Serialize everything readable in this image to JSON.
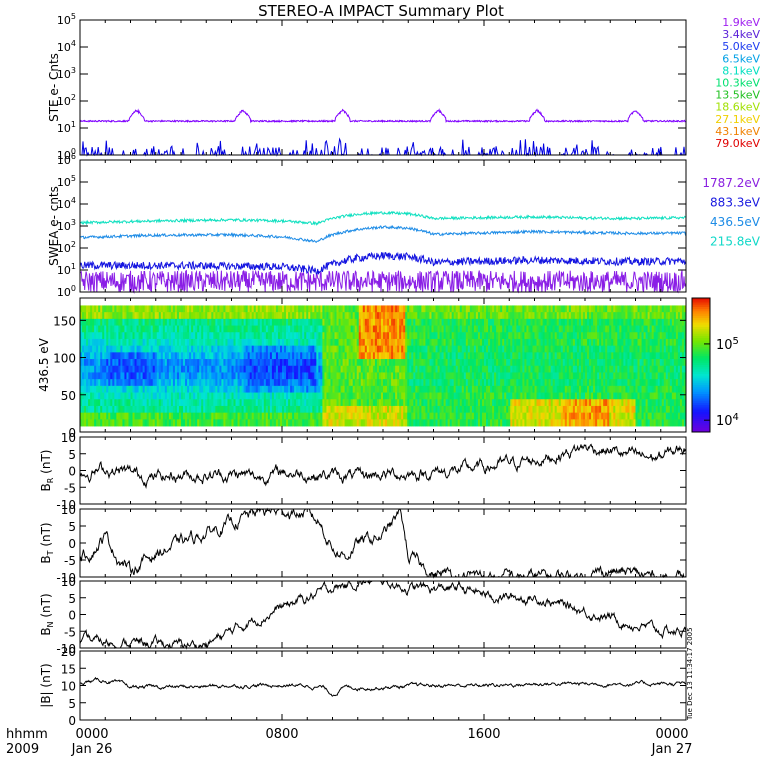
{
  "chart_data": {
    "type": "line",
    "title": "STEREO-A IMPACT Summary Plot",
    "x_axis": {
      "label_line1": "hhmm",
      "label_line2": "2009",
      "range_hours": [
        0,
        24
      ],
      "major_ticks": [
        {
          "hour": 0,
          "label": "0000",
          "sublabel": "Jan 26"
        },
        {
          "hour": 8,
          "label": "0800",
          "sublabel": ""
        },
        {
          "hour": 16,
          "label": "1600",
          "sublabel": ""
        },
        {
          "hour": 24,
          "label": "0000",
          "sublabel": "Jan 27"
        }
      ]
    },
    "panels": [
      {
        "id": "ste",
        "ylabel": "STE e- Cnts",
        "scale": "log",
        "ylim": [
          1,
          100000
        ],
        "tick_labels": [
          {
            "base": "10",
            "exp": "0",
            "value": 1
          },
          {
            "base": "10",
            "exp": "1",
            "value": 10
          },
          {
            "base": "10",
            "exp": "2",
            "value": 100
          },
          {
            "base": "10",
            "exp": "3",
            "value": 1000
          },
          {
            "base": "10",
            "exp": "4",
            "value": 10000
          },
          {
            "base": "10",
            "exp": "5",
            "value": 100000
          }
        ],
        "legend": [
          {
            "name": "1.9keV",
            "color": "#a020f0"
          },
          {
            "name": "3.4keV",
            "color": "#5a20d8"
          },
          {
            "name": "5.0keV",
            "color": "#1e3cf0"
          },
          {
            "name": "6.5keV",
            "color": "#00a0e6"
          },
          {
            "name": "8.1keV",
            "color": "#00e0c0"
          },
          {
            "name": "10.3keV",
            "color": "#00e070"
          },
          {
            "name": "13.5keV",
            "color": "#20c020"
          },
          {
            "name": "18.6keV",
            "color": "#a0e000"
          },
          {
            "name": "27.1keV",
            "color": "#f0d000"
          },
          {
            "name": "43.1keV",
            "color": "#f08000"
          },
          {
            "name": "79.0keV",
            "color": "#e00000"
          }
        ],
        "series": [
          {
            "name": "1.9keV",
            "color": "#7f00ff",
            "baseline": 18,
            "bumps_hours": [
              2.25,
              6.45,
              10.4,
              14.2,
              18.1,
              22.0
            ],
            "bump_peak": 50
          },
          {
            "name": "5.0keV",
            "color": "#0000e0",
            "baseline": 1,
            "note": "sparse spikes near floor"
          }
        ]
      },
      {
        "id": "swea",
        "ylabel": "SWEA e- cnts",
        "scale": "log",
        "ylim": [
          1,
          1000000
        ],
        "tick_labels": [
          {
            "base": "10",
            "exp": "0",
            "value": 1
          },
          {
            "base": "10",
            "exp": "1",
            "value": 10
          },
          {
            "base": "10",
            "exp": "2",
            "value": 100
          },
          {
            "base": "10",
            "exp": "3",
            "value": 1000
          },
          {
            "base": "10",
            "exp": "4",
            "value": 10000
          },
          {
            "base": "10",
            "exp": "5",
            "value": 100000
          },
          {
            "base": "10",
            "exp": "6",
            "value": 1000000
          }
        ],
        "legend": [
          {
            "name": "1787.2eV",
            "color": "#8a20e0"
          },
          {
            "name": "883.3eV",
            "color": "#1a1ae0"
          },
          {
            "name": "436.5eV",
            "color": "#1e8ce6"
          },
          {
            "name": "215.8eV",
            "color": "#10d8c8"
          }
        ],
        "series": [
          {
            "name": "215.8eV",
            "color": "#10e0c0",
            "points": [
              [
                0,
                1400
              ],
              [
                3,
                1700
              ],
              [
                6,
                1900
              ],
              [
                8,
                1700
              ],
              [
                9.4,
                1300
              ],
              [
                10,
                2200
              ],
              [
                11,
                3500
              ],
              [
                12,
                4000
              ],
              [
                13,
                3600
              ],
              [
                14,
                2200
              ],
              [
                16,
                2400
              ],
              [
                18,
                2600
              ],
              [
                20,
                2300
              ],
              [
                22,
                2200
              ],
              [
                24,
                2400
              ]
            ]
          },
          {
            "name": "436.5eV",
            "color": "#1e8ce6",
            "points": [
              [
                0,
                300
              ],
              [
                3,
                380
              ],
              [
                6,
                400
              ],
              [
                8,
                320
              ],
              [
                9.4,
                190
              ],
              [
                10,
                400
              ],
              [
                11,
                700
              ],
              [
                12,
                900
              ],
              [
                13,
                800
              ],
              [
                14,
                420
              ],
              [
                16,
                480
              ],
              [
                18,
                560
              ],
              [
                20,
                500
              ],
              [
                22,
                460
              ],
              [
                24,
                480
              ]
            ]
          },
          {
            "name": "883.3eV",
            "color": "#1414e0",
            "points": [
              [
                0,
                16
              ],
              [
                4,
                16
              ],
              [
                8,
                14
              ],
              [
                9.4,
                9
              ],
              [
                10,
                18
              ],
              [
                11,
                35
              ],
              [
                12,
                45
              ],
              [
                13,
                40
              ],
              [
                14,
                22
              ],
              [
                18,
                28
              ],
              [
                22,
                24
              ],
              [
                24,
                26
              ]
            ]
          },
          {
            "name": "1787.2eV",
            "color": "#8a1ee6",
            "baseline": 3,
            "note": "noisy floor"
          }
        ]
      },
      {
        "id": "pad",
        "ylabel": "436.5 eV",
        "type": "heatmap",
        "ylim": [
          0,
          180
        ],
        "tick_labels": [
          0,
          50,
          100,
          150
        ],
        "colorbar": {
          "scale": "log",
          "range": [
            7000,
            400000
          ],
          "tick_labels": [
            {
              "base": "10",
              "exp": "4",
              "value": 10000
            },
            {
              "base": "10",
              "exp": "5",
              "value": 100000
            }
          ]
        }
      },
      {
        "id": "br",
        "ylabel": "B",
        "ylabel_sub": "R",
        "ylabel_unit": "(nT)",
        "ylim": [
          -10,
          10
        ],
        "tick_labels": [
          -10,
          -5,
          0,
          5,
          10
        ],
        "series": [
          {
            "name": "BR",
            "color": "#000000",
            "points": [
              [
                0,
                -1
              ],
              [
                1,
                0.5
              ],
              [
                2,
                -1
              ],
              [
                3,
                -2
              ],
              [
                4,
                -1
              ],
              [
                5,
                -1.5
              ],
              [
                6,
                -1
              ],
              [
                7,
                -2
              ],
              [
                8,
                -0.5
              ],
              [
                9,
                -1
              ],
              [
                10,
                -1.5
              ],
              [
                11,
                -2
              ],
              [
                12,
                -1
              ],
              [
                13,
                -1
              ],
              [
                14,
                -0.5
              ],
              [
                15,
                0
              ],
              [
                16,
                1
              ],
              [
                17,
                2
              ],
              [
                18,
                3
              ],
              [
                19,
                5
              ],
              [
                20,
                7
              ],
              [
                21,
                6
              ],
              [
                22,
                4
              ],
              [
                23,
                4
              ],
              [
                24,
                7
              ]
            ]
          }
        ]
      },
      {
        "id": "bt",
        "ylabel": "B",
        "ylabel_sub": "T",
        "ylabel_unit": "(nT)",
        "ylim": [
          -10,
          10
        ],
        "tick_labels": [
          -10,
          -5,
          0,
          5,
          10
        ],
        "series": [
          {
            "name": "BT",
            "color": "#000000",
            "points": [
              [
                0,
                -4
              ],
              [
                0.5,
                -2
              ],
              [
                1,
                2
              ],
              [
                1.5,
                -4
              ],
              [
                2,
                -8
              ],
              [
                3,
                -3
              ],
              [
                4,
                0
              ],
              [
                5,
                3
              ],
              [
                6,
                6
              ],
              [
                7,
                9
              ],
              [
                8,
                9.5
              ],
              [
                9,
                8.5
              ],
              [
                9.5,
                6
              ],
              [
                10,
                -1
              ],
              [
                10.5,
                -4
              ],
              [
                11,
                0
              ],
              [
                12,
                2
              ],
              [
                12.7,
                9
              ],
              [
                13,
                -4
              ],
              [
                14,
                -9
              ],
              [
                15,
                -9.5
              ],
              [
                16,
                -10
              ],
              [
                18,
                -10
              ],
              [
                20,
                -9.5
              ],
              [
                21,
                -8
              ],
              [
                22,
                -9.5
              ],
              [
                23,
                -10
              ],
              [
                24,
                -10
              ]
            ]
          }
        ]
      },
      {
        "id": "bn",
        "ylabel": "B",
        "ylabel_sub": "N",
        "ylabel_unit": "(nT)",
        "ylim": [
          -10,
          10
        ],
        "tick_labels": [
          -10,
          -5,
          0,
          5,
          10
        ],
        "series": [
          {
            "name": "BN",
            "color": "#000000",
            "points": [
              [
                0,
                -8
              ],
              [
                2,
                -8.5
              ],
              [
                4,
                -9
              ],
              [
                5,
                -9
              ],
              [
                6,
                -5
              ],
              [
                7,
                -1
              ],
              [
                8,
                2
              ],
              [
                9,
                5
              ],
              [
                10,
                8
              ],
              [
                11,
                9.5
              ],
              [
                12,
                10
              ],
              [
                13,
                8
              ],
              [
                14,
                7.5
              ],
              [
                15,
                8
              ],
              [
                16,
                6
              ],
              [
                17,
                5
              ],
              [
                18,
                5
              ],
              [
                19,
                3
              ],
              [
                20,
                1
              ],
              [
                21,
                -1
              ],
              [
                22,
                -3
              ],
              [
                23,
                -5
              ],
              [
                24,
                -5
              ]
            ]
          }
        ]
      },
      {
        "id": "bmag",
        "ylabel": "|B|",
        "ylabel_unit": "(nT)",
        "ylim": [
          0,
          20
        ],
        "tick_labels": [
          0,
          5,
          10,
          15,
          20
        ],
        "series": [
          {
            "name": "|B|",
            "color": "#000000",
            "points": [
              [
                0,
                11
              ],
              [
                1,
                11.5
              ],
              [
                2,
                9.5
              ],
              [
                4,
                9.5
              ],
              [
                6,
                10
              ],
              [
                8,
                10
              ],
              [
                9,
                10
              ],
              [
                9.6,
                9.5
              ],
              [
                10,
                7.5
              ],
              [
                10.5,
                9.5
              ],
              [
                12,
                9.5
              ],
              [
                14,
                10
              ],
              [
                16,
                10
              ],
              [
                18,
                10.5
              ],
              [
                20,
                10.5
              ],
              [
                22,
                10.5
              ],
              [
                24,
                10.5
              ]
            ]
          }
        ]
      }
    ]
  },
  "footer": {
    "timestamp": "Tue Dec 13 11:34:17 2005"
  }
}
